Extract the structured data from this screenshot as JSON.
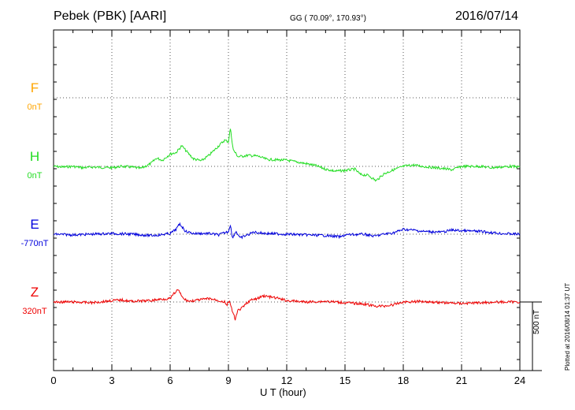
{
  "header": {
    "station": "Pebek (PBK)  [AARI]",
    "coords": "GG ( 70.09°, 170.93°)",
    "date": "2016/07/14"
  },
  "xaxis_label": "U T (hour)",
  "plotted_note": "Plotted at 2016/08/14 01:37 UT",
  "scale_label": "500 nT",
  "chart_data": {
    "type": "line",
    "xlabel": "U T (hour)",
    "xlim": [
      0,
      24
    ],
    "x_ticks": [
      "0",
      "3",
      "6",
      "9",
      "12",
      "15",
      "18",
      "21",
      "24"
    ],
    "grid": true,
    "scale_bar_nT": 500,
    "series": [
      {
        "name": "F",
        "baseline_label": "0nT",
        "color": "#FFA500",
        "points": []
      },
      {
        "name": "H",
        "baseline_label": "0nT",
        "color": "#22DD22",
        "points": [
          [
            0,
            0
          ],
          [
            0.5,
            -5
          ],
          [
            1,
            0
          ],
          [
            1.5,
            -10
          ],
          [
            2,
            -5
          ],
          [
            3,
            -10
          ],
          [
            3.5,
            0
          ],
          [
            4,
            -5
          ],
          [
            4.5,
            -15
          ],
          [
            5,
            20
          ],
          [
            5.3,
            60
          ],
          [
            5.6,
            45
          ],
          [
            6,
            90
          ],
          [
            6.3,
            100
          ],
          [
            6.6,
            150
          ],
          [
            6.9,
            100
          ],
          [
            7.2,
            55
          ],
          [
            7.6,
            40
          ],
          [
            8,
            80
          ],
          [
            8.5,
            150
          ],
          [
            8.8,
            190
          ],
          [
            9,
            180
          ],
          [
            9.1,
            275
          ],
          [
            9.25,
            120
          ],
          [
            9.5,
            70
          ],
          [
            10,
            80
          ],
          [
            10.5,
            75
          ],
          [
            11,
            50
          ],
          [
            12,
            45
          ],
          [
            13,
            20
          ],
          [
            13.5,
            5
          ],
          [
            14,
            -20
          ],
          [
            14.5,
            -35
          ],
          [
            15,
            -30
          ],
          [
            15.5,
            -20
          ],
          [
            15.8,
            -60
          ],
          [
            16.2,
            -65
          ],
          [
            16.6,
            -105
          ],
          [
            17,
            -55
          ],
          [
            17.5,
            -25
          ],
          [
            18,
            0
          ],
          [
            18.5,
            10
          ],
          [
            19,
            0
          ],
          [
            20,
            -15
          ],
          [
            20.5,
            -25
          ],
          [
            21,
            0
          ],
          [
            22,
            0
          ],
          [
            22.5,
            -10
          ],
          [
            23,
            -5
          ],
          [
            23.5,
            0
          ],
          [
            24,
            -5
          ]
        ]
      },
      {
        "name": "E",
        "baseline_label": "-770nT",
        "color": "#0000DD",
        "points": [
          [
            0,
            0
          ],
          [
            1,
            -5
          ],
          [
            2,
            0
          ],
          [
            3,
            5
          ],
          [
            4,
            0
          ],
          [
            5,
            -10
          ],
          [
            5.5,
            -5
          ],
          [
            6,
            5
          ],
          [
            6.3,
            35
          ],
          [
            6.5,
            75
          ],
          [
            6.8,
            20
          ],
          [
            7.2,
            5
          ],
          [
            8,
            5
          ],
          [
            8.5,
            -5
          ],
          [
            9,
            20
          ],
          [
            9.1,
            70
          ],
          [
            9.2,
            -25
          ],
          [
            9.4,
            20
          ],
          [
            9.6,
            -30
          ],
          [
            9.8,
            -15
          ],
          [
            10,
            -5
          ],
          [
            10.3,
            15
          ],
          [
            10.6,
            10
          ],
          [
            11,
            5
          ],
          [
            12,
            0
          ],
          [
            13,
            -5
          ],
          [
            14,
            -10
          ],
          [
            14.8,
            -20
          ],
          [
            15,
            -5
          ],
          [
            16,
            0
          ],
          [
            16.5,
            -15
          ],
          [
            17,
            0
          ],
          [
            17.5,
            10
          ],
          [
            18,
            35
          ],
          [
            18.5,
            30
          ],
          [
            19,
            20
          ],
          [
            20,
            15
          ],
          [
            20.5,
            30
          ],
          [
            21,
            25
          ],
          [
            22,
            20
          ],
          [
            23,
            5
          ],
          [
            24,
            0
          ]
        ]
      },
      {
        "name": "Z",
        "baseline_label": "320nT",
        "color": "#EE0000",
        "points": [
          [
            0,
            0
          ],
          [
            1,
            0
          ],
          [
            2,
            -5
          ],
          [
            3,
            10
          ],
          [
            3.5,
            15
          ],
          [
            4,
            5
          ],
          [
            5,
            10
          ],
          [
            5.5,
            20
          ],
          [
            6,
            25
          ],
          [
            6.2,
            60
          ],
          [
            6.4,
            90
          ],
          [
            6.7,
            20
          ],
          [
            7,
            5
          ],
          [
            7.5,
            15
          ],
          [
            8,
            25
          ],
          [
            8.5,
            10
          ],
          [
            8.8,
            0
          ],
          [
            8.9,
            -25
          ],
          [
            9.05,
            10
          ],
          [
            9.2,
            -70
          ],
          [
            9.35,
            -125
          ],
          [
            9.5,
            -60
          ],
          [
            9.7,
            -45
          ],
          [
            9.9,
            -15
          ],
          [
            10.1,
            10
          ],
          [
            10.5,
            25
          ],
          [
            10.8,
            45
          ],
          [
            11.2,
            35
          ],
          [
            11.6,
            25
          ],
          [
            12,
            10
          ],
          [
            12.5,
            5
          ],
          [
            13,
            0
          ],
          [
            14,
            5
          ],
          [
            15,
            -5
          ],
          [
            15.5,
            -10
          ],
          [
            16,
            -15
          ],
          [
            16.5,
            -30
          ],
          [
            17,
            -30
          ],
          [
            17.5,
            -20
          ],
          [
            18,
            0
          ],
          [
            19,
            5
          ],
          [
            20,
            -5
          ],
          [
            21,
            -10
          ],
          [
            22,
            -5
          ],
          [
            23,
            0
          ],
          [
            24,
            0
          ]
        ]
      }
    ]
  }
}
